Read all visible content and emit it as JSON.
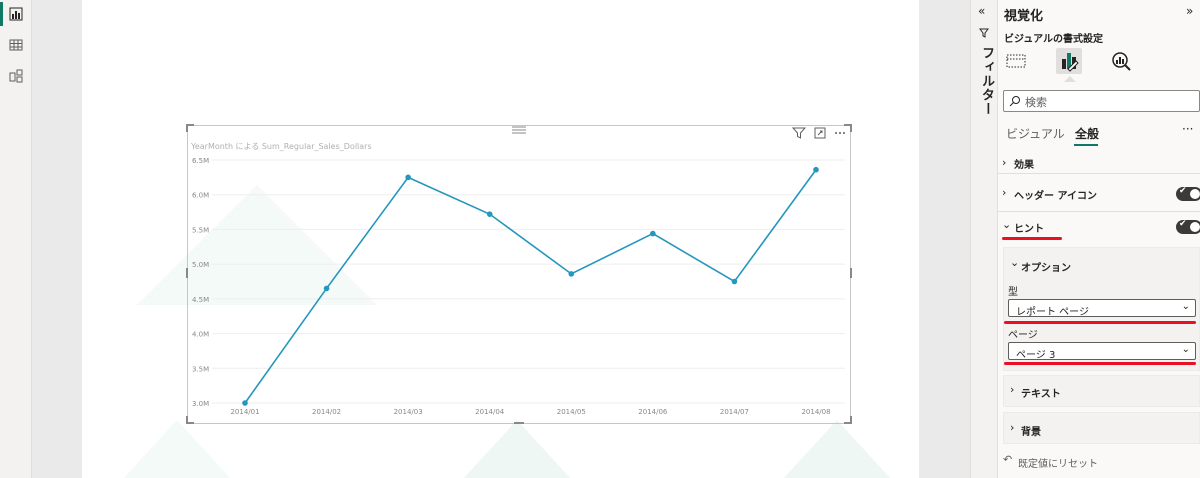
{
  "visual": {
    "title": "YearMonth による Sum_Regular_Sales_Dollars"
  },
  "chart_data": {
    "type": "line",
    "x": [
      "2014/01",
      "2014/02",
      "2014/03",
      "2014/04",
      "2014/05",
      "2014/06",
      "2014/07",
      "2014/08"
    ],
    "values": [
      3.0,
      4.65,
      6.25,
      5.72,
      4.86,
      5.44,
      4.75,
      6.36
    ],
    "y_ticks": [
      "3.0M",
      "3.5M",
      "4.0M",
      "4.5M",
      "5.0M",
      "5.5M",
      "6.0M",
      "6.5M"
    ],
    "ylim": [
      3.0,
      6.5
    ],
    "grid": true,
    "line_color": "#2596be"
  },
  "filter_strip": {
    "label": "フィルター"
  },
  "pane": {
    "title": "視覚化",
    "subtitle": "ビジュアルの書式設定",
    "search_placeholder": "検索",
    "tabs": [
      "ビジュアル",
      "全般"
    ],
    "sections": {
      "effects": "効果",
      "header_icons": "ヘッダー アイコン",
      "tooltip": "ヒント",
      "options": "オプション",
      "type_label": "型",
      "type_value": "レポート ページ",
      "page_label": "ページ",
      "page_value": "ページ 3",
      "text": "テキスト",
      "background": "背景"
    },
    "reset": "既定値にリセット"
  },
  "colors": {
    "accent": "#117865",
    "highlight": "#e81123"
  }
}
